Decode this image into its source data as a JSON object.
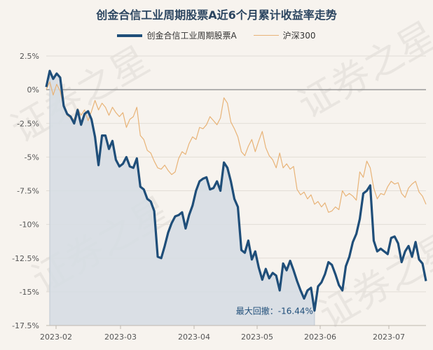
{
  "chart_data": {
    "type": "line",
    "title": "创金合信工业周期股票A近6个月累计收益率走势",
    "series": [
      {
        "name": "创金合信工业周期股票A",
        "color": "#1f4e79",
        "values": [
          0.2,
          1.4,
          0.8,
          1.2,
          0.9,
          -1.2,
          -1.8,
          -2.0,
          -2.5,
          -1.5,
          -2.6,
          -1.8,
          -1.6,
          -2.2,
          -3.5,
          -5.6,
          -3.4,
          -3.4,
          -4.4,
          -3.8,
          -5.2,
          -5.7,
          -5.5,
          -5.0,
          -5.7,
          -5.8,
          -5.1,
          -7.2,
          -7.4,
          -8.1,
          -8.3,
          -9.0,
          -12.4,
          -12.5,
          -11.6,
          -10.6,
          -9.9,
          -9.4,
          -9.3,
          -9.1,
          -10.3,
          -9.3,
          -8.6,
          -7.5,
          -6.8,
          -6.6,
          -6.5,
          -7.4,
          -7.3,
          -6.8,
          -7.5,
          -5.4,
          -5.8,
          -6.8,
          -8.1,
          -8.7,
          -11.9,
          -12.1,
          -11.2,
          -12.6,
          -12.0,
          -13.2,
          -14.1,
          -13.3,
          -14.0,
          -13.6,
          -13.8,
          -14.9,
          -12.9,
          -13.4,
          -12.7,
          -13.4,
          -14.2,
          -14.9,
          -15.5,
          -14.9,
          -14.7,
          -16.4,
          -14.6,
          -14.3,
          -13.7,
          -12.8,
          -13.0,
          -13.7,
          -14.5,
          -14.9,
          -13.1,
          -12.4,
          -11.3,
          -10.7,
          -9.6,
          -7.7,
          -7.5,
          -7.1,
          -11.2,
          -12.0,
          -11.8,
          -12.0,
          -12.2,
          -11.0,
          -10.9,
          -11.4,
          -12.8,
          -12.0,
          -11.6,
          -12.4,
          -11.3,
          -12.6,
          -12.9,
          -14.2
        ]
      },
      {
        "name": "沪深300",
        "color": "#e8b377",
        "values": [
          0.0,
          0.6,
          -0.4,
          0.4,
          -0.1,
          -1.3,
          -1.9,
          -2.1,
          -2.2,
          -1.4,
          -1.9,
          -1.5,
          -2.3,
          -1.6,
          -0.8,
          -1.5,
          -1.0,
          -1.3,
          -1.9,
          -1.3,
          -1.7,
          -2.0,
          -1.7,
          -2.8,
          -2.2,
          -2.0,
          -1.3,
          -3.4,
          -3.7,
          -4.5,
          -4.7,
          -5.3,
          -5.8,
          -5.9,
          -5.6,
          -6.0,
          -6.3,
          -6.1,
          -5.1,
          -4.6,
          -4.8,
          -4.0,
          -3.5,
          -3.7,
          -2.8,
          -2.9,
          -2.6,
          -2.0,
          -2.3,
          -2.6,
          -2.1,
          -0.6,
          -1.0,
          -2.4,
          -2.9,
          -3.5,
          -4.6,
          -4.9,
          -4.2,
          -3.7,
          -4.6,
          -3.8,
          -3.1,
          -4.3,
          -4.9,
          -5.2,
          -5.8,
          -4.7,
          -5.8,
          -5.5,
          -5.9,
          -5.7,
          -7.4,
          -7.8,
          -7.6,
          -8.1,
          -7.8,
          -8.5,
          -8.3,
          -8.7,
          -8.4,
          -9.1,
          -9.0,
          -8.7,
          -8.9,
          -7.5,
          -7.9,
          -7.7,
          -7.9,
          -8.2,
          -6.1,
          -6.5,
          -5.3,
          -5.8,
          -7.3,
          -8.1,
          -7.7,
          -7.8,
          -7.2,
          -6.8,
          -7.0,
          -6.9,
          -7.7,
          -8.0,
          -7.3,
          -7.0,
          -6.8,
          -7.6,
          -7.9,
          -8.5
        ]
      }
    ],
    "x_ticks": [
      "2023-02",
      "2023-03",
      "2023-04",
      "2023-05",
      "2023-06",
      "2023-07"
    ],
    "y_ticks": [
      "2.5%",
      "0%",
      "-2.5%",
      "-5%",
      "-7.5%",
      "-10%",
      "-12.5%",
      "-15%",
      "-17.5%"
    ],
    "ylim": [
      -17.5,
      2.5
    ],
    "grid": "horizontal",
    "legend": "top-center",
    "annotation": {
      "text": "最大回撤：-16.44%",
      "value": -16.44
    },
    "max_drawdown_fill": "#d6dde3",
    "watermark": "证券之星"
  }
}
